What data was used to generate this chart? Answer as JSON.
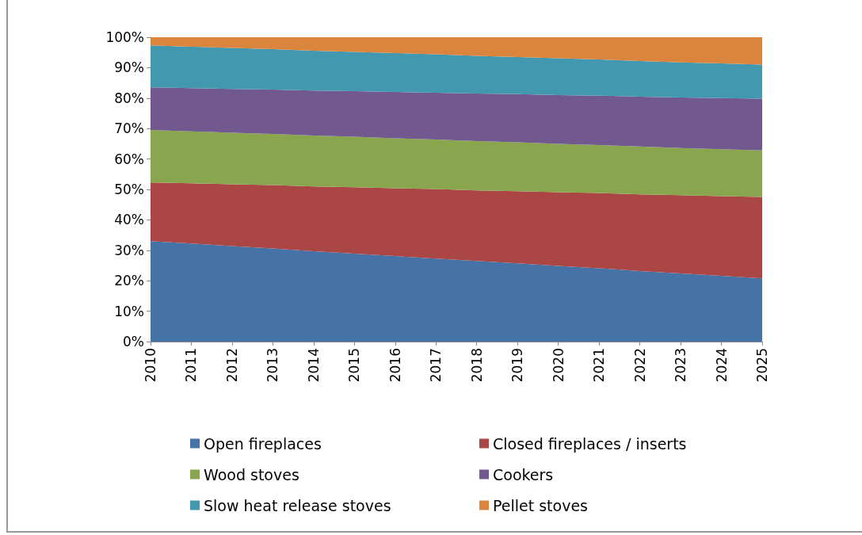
{
  "chart_data": {
    "type": "area",
    "stacked": true,
    "categories": [
      "2010",
      "2011",
      "2012",
      "2013",
      "2014",
      "2015",
      "2016",
      "2017",
      "2018",
      "2019",
      "2020",
      "2021",
      "2022",
      "2023",
      "2024",
      "2025"
    ],
    "series": [
      {
        "name": "Open fireplaces",
        "color": "#4572a7",
        "values": [
          33.0,
          32.2,
          31.4,
          30.6,
          29.7,
          28.9,
          28.1,
          27.3,
          26.5,
          25.7,
          24.9,
          24.1,
          23.2,
          22.4,
          21.6,
          20.8
        ]
      },
      {
        "name": "Closed fireplaces / inserts",
        "color": "#aa4643",
        "values": [
          19.3,
          19.8,
          20.3,
          20.8,
          21.3,
          21.8,
          22.3,
          22.8,
          23.2,
          23.7,
          24.2,
          24.7,
          25.2,
          25.7,
          26.2,
          26.7
        ]
      },
      {
        "name": "Wood stoves",
        "color": "#89a54e",
        "values": [
          17.2,
          17.1,
          16.9,
          16.8,
          16.7,
          16.6,
          16.4,
          16.3,
          16.2,
          16.1,
          15.9,
          15.8,
          15.7,
          15.5,
          15.4,
          15.3
        ]
      },
      {
        "name": "Cookers",
        "color": "#71588f",
        "values": [
          14.0,
          14.2,
          14.4,
          14.6,
          14.8,
          15.0,
          15.2,
          15.4,
          15.6,
          15.8,
          16.0,
          16.2,
          16.4,
          16.6,
          16.8,
          17.0
        ]
      },
      {
        "name": "Slow heat release stoves",
        "color": "#4198af",
        "values": [
          13.8,
          13.6,
          13.5,
          13.3,
          13.1,
          12.9,
          12.8,
          12.6,
          12.4,
          12.2,
          12.1,
          11.9,
          11.7,
          11.5,
          11.4,
          11.2
        ]
      },
      {
        "name": "Pellet stoves",
        "color": "#db843d",
        "values": [
          2.7,
          3.1,
          3.5,
          3.9,
          4.4,
          4.8,
          5.2,
          5.6,
          6.1,
          6.5,
          6.9,
          7.3,
          7.8,
          8.3,
          8.6,
          9.0
        ]
      }
    ],
    "ylim": [
      0,
      100
    ],
    "yticks": [
      {
        "value": 0,
        "label": "0%"
      },
      {
        "value": 10,
        "label": "10%"
      },
      {
        "value": 20,
        "label": "20%"
      },
      {
        "value": 30,
        "label": "30%"
      },
      {
        "value": 40,
        "label": "40%"
      },
      {
        "value": 50,
        "label": "50%"
      },
      {
        "value": 60,
        "label": "60%"
      },
      {
        "value": 70,
        "label": "70%"
      },
      {
        "value": 80,
        "label": "80%"
      },
      {
        "value": 90,
        "label": "90%"
      },
      {
        "value": 100,
        "label": "100%"
      }
    ],
    "grid": false,
    "legend": "bottom"
  }
}
